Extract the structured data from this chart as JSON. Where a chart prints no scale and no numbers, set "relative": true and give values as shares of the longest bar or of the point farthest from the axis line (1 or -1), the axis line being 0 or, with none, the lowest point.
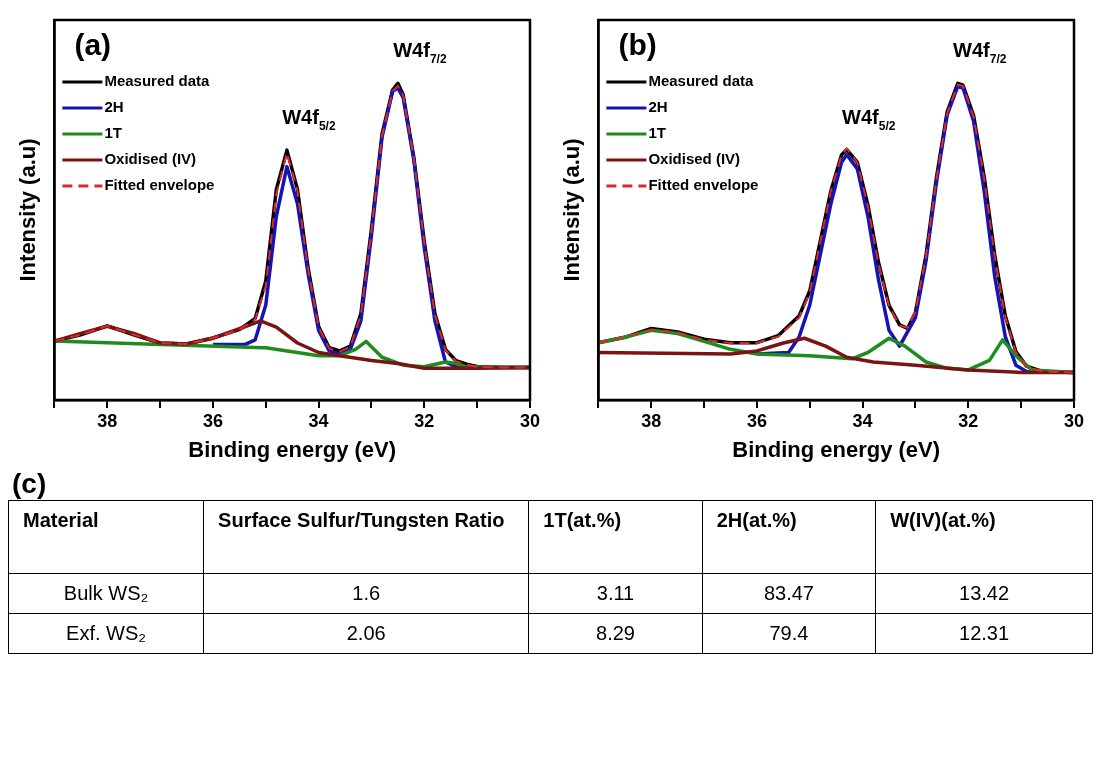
{
  "chart_data": [
    {
      "type": "line",
      "title": "(a)",
      "xlabel": "Binding energy (eV)",
      "ylabel": "Intensity (a.u)",
      "relative": true,
      "xlim": [
        39,
        30
      ],
      "xticks": [
        {
          "value": 39,
          "label": null
        },
        38,
        {
          "value": 37,
          "label": null
        },
        36,
        {
          "value": 35,
          "label": null
        },
        34,
        {
          "value": 33,
          "label": null
        },
        32,
        {
          "value": 31,
          "label": null
        },
        30
      ],
      "grid": false,
      "legend": "top left",
      "marker": "none",
      "annotations": [
        {
          "text": "W4f$_{5/2}$",
          "x": 34.6,
          "y": 0.789
        },
        {
          "text": "W4f$_{7/2}$",
          "x": 32.5,
          "y": 1
        }
      ],
      "series": [
        {
          "name": "Measured data",
          "color": "#000000",
          "x": [
            39,
            38.5,
            38,
            37.5,
            37,
            36.5,
            36,
            35.5,
            35.2,
            35,
            34.8,
            34.6,
            34.4,
            34.2,
            34,
            33.8,
            33.6,
            33.4,
            33.2,
            33,
            32.8,
            32.6,
            32.5,
            32.4,
            32.2,
            32,
            31.8,
            31.6,
            31.4,
            31.2,
            31,
            30.5,
            30
          ],
          "values": [
            0.186,
            0.206,
            0.234,
            0.206,
            0.18,
            0.177,
            0.196,
            0.222,
            0.258,
            0.376,
            0.665,
            0.789,
            0.665,
            0.418,
            0.232,
            0.165,
            0.155,
            0.17,
            0.273,
            0.541,
            0.84,
            0.979,
            1,
            0.964,
            0.768,
            0.5,
            0.273,
            0.16,
            0.124,
            0.113,
            0.106,
            0.103,
            0.103
          ]
        },
        {
          "name": "2H",
          "color": "#1414b4",
          "x": [
            36,
            35.4,
            35.2,
            35,
            34.8,
            34.6,
            34.4,
            34.2,
            34,
            33.8,
            33.6,
            33.4,
            33.2,
            33,
            32.8,
            32.6,
            32.5,
            32.4,
            32.2,
            32,
            31.8,
            31.6,
            31.4,
            31,
            30
          ],
          "values": [
            0.175,
            0.175,
            0.19,
            0.3,
            0.58,
            0.737,
            0.62,
            0.4,
            0.22,
            0.155,
            0.145,
            0.16,
            0.25,
            0.52,
            0.83,
            0.975,
            0.985,
            0.955,
            0.76,
            0.48,
            0.25,
            0.12,
            0.105,
            0.103,
            0.103
          ]
        },
        {
          "name": "1T",
          "color": "#1e8c1e",
          "x": [
            39,
            37,
            35,
            34,
            33.6,
            33.3,
            33.1,
            32.8,
            32.4,
            32,
            31.6,
            31.4,
            31.2,
            30
          ],
          "values": [
            0.186,
            0.175,
            0.165,
            0.14,
            0.14,
            0.16,
            0.185,
            0.135,
            0.11,
            0.105,
            0.12,
            0.115,
            0.105,
            0.103
          ]
        },
        {
          "name": "Oxidised (IV)",
          "color": "#7a1414",
          "x": [
            39,
            38.5,
            38,
            37.5,
            37,
            36.5,
            36,
            35.5,
            35.1,
            34.8,
            34.4,
            34,
            33.6,
            33,
            32.5,
            32,
            31,
            30
          ],
          "values": [
            0.186,
            0.21,
            0.233,
            0.21,
            0.18,
            0.177,
            0.195,
            0.225,
            0.25,
            0.23,
            0.18,
            0.15,
            0.14,
            0.125,
            0.115,
            0.1,
            0.1,
            0.103
          ]
        },
        {
          "name": "Fitted envelope",
          "color": "#e02828",
          "line_style": "dashed",
          "x": [
            39,
            38.5,
            38,
            37.5,
            37,
            36.5,
            36,
            35.5,
            35.2,
            35,
            34.8,
            34.6,
            34.4,
            34.2,
            34,
            33.8,
            33.6,
            33.4,
            33.2,
            33,
            32.8,
            32.6,
            32.5,
            32.4,
            32.2,
            32,
            31.8,
            31.6,
            31.4,
            31.2,
            31,
            30.5,
            30
          ],
          "values": [
            0.186,
            0.206,
            0.234,
            0.206,
            0.18,
            0.177,
            0.196,
            0.222,
            0.255,
            0.36,
            0.65,
            0.78,
            0.66,
            0.415,
            0.23,
            0.163,
            0.153,
            0.168,
            0.27,
            0.535,
            0.835,
            0.975,
            0.992,
            0.962,
            0.765,
            0.495,
            0.27,
            0.158,
            0.122,
            0.112,
            0.105,
            0.103,
            0.103
          ]
        }
      ]
    },
    {
      "type": "line",
      "title": "(b)",
      "xlabel": "Binding energy (eV)",
      "ylabel": "Intensity (a.u)",
      "relative": true,
      "xlim": [
        39,
        30
      ],
      "xticks": [
        {
          "value": 39,
          "label": null
        },
        38,
        {
          "value": 37,
          "label": null
        },
        36,
        {
          "value": 35,
          "label": null
        },
        34,
        {
          "value": 33,
          "label": null
        },
        32,
        {
          "value": 31,
          "label": null
        },
        30
      ],
      "grid": false,
      "legend": "top left",
      "marker": "none",
      "annotations": [
        {
          "text": "W4f$_{5/2}$",
          "x": 34.3,
          "y": 0.791
        },
        {
          "text": "W4f$_{7/2}$",
          "x": 32.2,
          "y": 1
        }
      ],
      "series": [
        {
          "name": "Measured data",
          "color": "#000000",
          "x": [
            39,
            38.5,
            38,
            37.5,
            37,
            36.5,
            36,
            35.6,
            35.2,
            35,
            34.8,
            34.6,
            34.4,
            34.3,
            34.1,
            33.9,
            33.7,
            33.5,
            33.3,
            33.15,
            33,
            32.8,
            32.6,
            32.4,
            32.2,
            32.1,
            31.9,
            31.7,
            31.5,
            31.3,
            31.1,
            30.9,
            30.6,
            30
          ],
          "values": [
            0.181,
            0.198,
            0.226,
            0.215,
            0.192,
            0.181,
            0.181,
            0.203,
            0.266,
            0.345,
            0.503,
            0.661,
            0.774,
            0.791,
            0.751,
            0.616,
            0.435,
            0.299,
            0.237,
            0.226,
            0.277,
            0.458,
            0.706,
            0.91,
            1,
            0.994,
            0.898,
            0.706,
            0.458,
            0.266,
            0.153,
            0.107,
            0.09,
            0.087
          ]
        },
        {
          "name": "2H",
          "color": "#1414b4",
          "x": [
            36,
            35.4,
            35.2,
            35,
            34.8,
            34.6,
            34.4,
            34.3,
            34.1,
            33.9,
            33.7,
            33.5,
            33.3,
            33.2,
            33,
            32.8,
            32.6,
            32.4,
            32.2,
            32.1,
            31.9,
            31.7,
            31.5,
            31.3,
            31.1,
            30.9,
            30
          ],
          "values": [
            0.145,
            0.15,
            0.2,
            0.3,
            0.46,
            0.62,
            0.75,
            0.775,
            0.73,
            0.58,
            0.38,
            0.22,
            0.17,
            0.2,
            0.26,
            0.44,
            0.69,
            0.9,
            0.99,
            0.985,
            0.88,
            0.66,
            0.39,
            0.2,
            0.11,
            0.09,
            0.087
          ]
        },
        {
          "name": "1T",
          "color": "#1e8c1e",
          "x": [
            39,
            38.5,
            38,
            37.5,
            37,
            36.5,
            36,
            35,
            34.2,
            33.9,
            33.5,
            33.2,
            32.8,
            32.4,
            32,
            31.6,
            31.35,
            31.1,
            30.8,
            30
          ],
          "values": [
            0.181,
            0.198,
            0.22,
            0.21,
            0.185,
            0.16,
            0.145,
            0.14,
            0.13,
            0.15,
            0.195,
            0.17,
            0.12,
            0.1,
            0.095,
            0.125,
            0.19,
            0.14,
            0.095,
            0.087
          ]
        },
        {
          "name": "Oxidised (IV)",
          "color": "#7a1414",
          "x": [
            39,
            36.5,
            36,
            35.5,
            35.1,
            34.7,
            34.3,
            33.8,
            33,
            32,
            31,
            30
          ],
          "values": [
            0.15,
            0.145,
            0.155,
            0.18,
            0.195,
            0.17,
            0.135,
            0.12,
            0.11,
            0.095,
            0.087,
            0.087
          ]
        },
        {
          "name": "Fitted envelope",
          "color": "#e02828",
          "line_style": "dashed",
          "x": [
            39,
            38.5,
            38,
            37.5,
            37,
            36.5,
            36,
            35.6,
            35.2,
            35,
            34.8,
            34.6,
            34.4,
            34.3,
            34.1,
            33.9,
            33.7,
            33.5,
            33.3,
            33.15,
            33,
            32.8,
            32.6,
            32.4,
            32.2,
            32.1,
            31.9,
            31.7,
            31.5,
            31.3,
            31.1,
            30.9,
            30.6,
            30
          ],
          "values": [
            0.181,
            0.198,
            0.222,
            0.213,
            0.19,
            0.18,
            0.18,
            0.2,
            0.26,
            0.34,
            0.5,
            0.66,
            0.772,
            0.795,
            0.75,
            0.612,
            0.43,
            0.295,
            0.235,
            0.228,
            0.28,
            0.455,
            0.7,
            0.905,
            0.996,
            0.992,
            0.895,
            0.7,
            0.452,
            0.262,
            0.15,
            0.105,
            0.09,
            0.087
          ]
        }
      ]
    },
    {
      "type": "other",
      "title": "(c)",
      "categories": [
        "Material",
        "Surface Sulfur/Tungsten Ratio",
        "1T(at.%)",
        "2H(at.%)",
        "W(IV)(at.%)"
      ],
      "cell_labels": [
        [
          "Bulk WS₂",
          "1.6",
          "3.11",
          "83.47",
          "13.42"
        ],
        [
          "Exf. WS₂",
          "2.06",
          "8.29",
          "79.4",
          "12.31"
        ]
      ]
    }
  ]
}
